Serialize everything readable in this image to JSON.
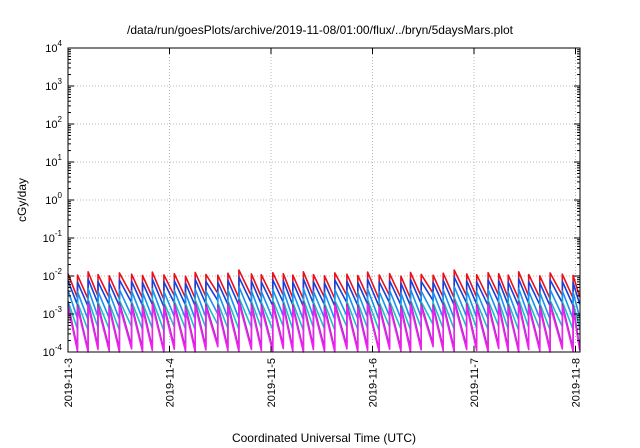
{
  "chart_data": {
    "type": "line",
    "title": "/data/run/goesPlots/archive/2019-11-08/01:00/flux/../bryn/5daysMars.plot",
    "xlabel": "Coordinated Universal Time (UTC)",
    "ylabel": "cGy/day",
    "y_scale": "log",
    "ylim": [
      0.0001,
      10000
    ],
    "xlim": [
      "2019-11-03",
      "2019-11-08 01:00"
    ],
    "x_ticks": [
      "2019-11-3",
      "2019-11-4",
      "2019-11-5",
      "2019-11-6",
      "2019-11-7",
      "2019-11-8"
    ],
    "y_ticks": [
      {
        "base": "10",
        "exp": "-4"
      },
      {
        "base": "10",
        "exp": "-3"
      },
      {
        "base": "10",
        "exp": "-2"
      },
      {
        "base": "10",
        "exp": "-1"
      },
      {
        "base": "10",
        "exp": "0"
      },
      {
        "base": "10",
        "exp": "1"
      },
      {
        "base": "10",
        "exp": "2"
      },
      {
        "base": "10",
        "exp": "3"
      },
      {
        "base": "10",
        "exp": "4"
      }
    ],
    "grid": true,
    "sawtooth_period_hours": 2.6,
    "series": [
      {
        "color": "#e8101c",
        "peak": 0.0115,
        "trough": 0.0028
      },
      {
        "color": "#1840d8",
        "peak": 0.0075,
        "trough": 0.0018
      },
      {
        "color": "#1890f0",
        "peak": 0.0042,
        "trough": 0.0008
      },
      {
        "color": "#18c0c8",
        "peak": 0.0022,
        "trough": 0.00042
      },
      {
        "color": "#8838a8",
        "peak": 0.0019,
        "trough": 0.00013
      },
      {
        "color": "#f020f0",
        "peak": 0.0016,
        "trough": 0.00011
      }
    ]
  }
}
